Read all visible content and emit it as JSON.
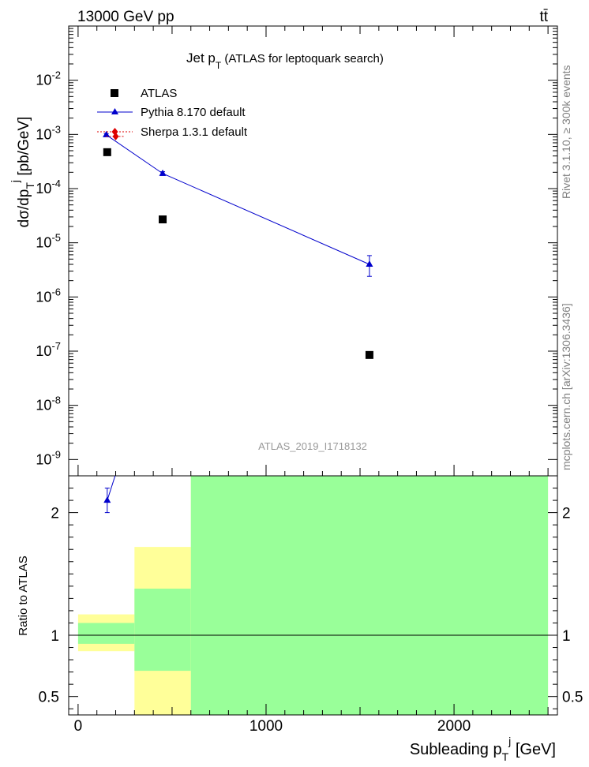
{
  "header": {
    "left": "13000 GeV pp",
    "right": "tt̄"
  },
  "side_labels": {
    "rivet": "Rivet 3.1.10, ≥ 300k events",
    "mcplots": "mcplots.cern.ch [arXiv:1306.3436]"
  },
  "chart_data": {
    "type": "scatter",
    "title": "Jet p_T (ATLAS for leptoquark search)",
    "analysis_id": "ATLAS_2019_I1718132",
    "ylabel": "dσ/dp_T^j [pb/GeV]",
    "xlabel": "Subleading p_T^j [GeV]",
    "xlim": [
      -50,
      2550
    ],
    "ylim": [
      5e-10,
      0.1
    ],
    "yscale": "log",
    "x_ticks": [
      0,
      1000,
      2000
    ],
    "y_ticks": [
      "10^-9",
      "10^-8",
      "10^-7",
      "10^-6",
      "10^-5",
      "10^-4",
      "10^-3",
      "10^-2"
    ],
    "legend": [
      {
        "name": "ATLAS",
        "marker": "square",
        "color": "#000000"
      },
      {
        "name": "Pythia 8.170 default",
        "marker": "triangle",
        "color": "#0000cc"
      },
      {
        "name": "Sherpa 1.3.1 default",
        "marker": "diamond",
        "color": "#dd0000"
      }
    ],
    "series": [
      {
        "name": "ATLAS",
        "x": [
          155,
          450,
          1550
        ],
        "y": [
          0.00047,
          2.7e-05,
          8.5e-08
        ]
      },
      {
        "name": "Pythia 8.170 default",
        "x": [
          150,
          450,
          1550
        ],
        "y": [
          0.00098,
          0.00019,
          4e-06
        ],
        "yerr_low": [
          0.00093,
          0.000175,
          2.4e-06
        ],
        "yerr_high": [
          0.00103,
          0.000205,
          5.8e-06
        ]
      },
      {
        "name": "Sherpa 1.3.1 default",
        "x": [
          200
        ],
        "y": [
          0.00092
        ]
      }
    ],
    "ratio": {
      "ylabel": "Ratio to ATLAS",
      "ylim": [
        0.35,
        2.3
      ],
      "y_ticks": [
        "0.5",
        "1",
        "2"
      ],
      "reference": 1.0,
      "bands": [
        {
          "x_low": 0,
          "x_high": 300,
          "yellow": [
            0.87,
            1.17
          ],
          "green": [
            0.93,
            1.1
          ]
        },
        {
          "x_low": 300,
          "x_high": 600,
          "yellow": [
            0.35,
            1.72
          ],
          "green": [
            0.71,
            1.38
          ]
        },
        {
          "x_low": 600,
          "x_high": 2500,
          "yellow": [
            0.35,
            2.3
          ],
          "green": [
            0.35,
            2.3
          ]
        }
      ],
      "pythia_points": [
        {
          "x": 155,
          "y": 2.1,
          "err_low": 2.0,
          "err_high": 2.2
        }
      ]
    }
  }
}
